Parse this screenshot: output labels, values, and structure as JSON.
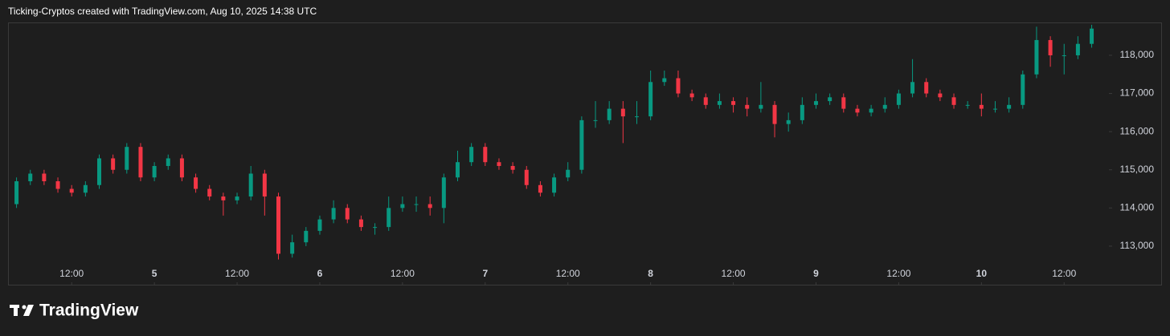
{
  "header": "Ticking-Cryptos created with TradingView.com, Aug 10, 2025 14:38 UTC",
  "brand": "TradingView",
  "chart_data": {
    "type": "candlestick",
    "up_color": "#089981",
    "down_color": "#f23645",
    "x": [
      4,
      6,
      8,
      10,
      12,
      14,
      16,
      18,
      20,
      22,
      24,
      26,
      28,
      30,
      32,
      34,
      36,
      38,
      40,
      42,
      44,
      46,
      48,
      50,
      52,
      54,
      56,
      58,
      60,
      62,
      64,
      66,
      68,
      70,
      72,
      74,
      76,
      78,
      80,
      82,
      84,
      86,
      88,
      90,
      92,
      94,
      96,
      98,
      100,
      102,
      104,
      106,
      108,
      110,
      112,
      114,
      116,
      118,
      120,
      122,
      124,
      126,
      128,
      130,
      132,
      134,
      136,
      138,
      140,
      142,
      144,
      146,
      148,
      150,
      152,
      154,
      156,
      158,
      160
    ],
    "open": [
      114100,
      114700,
      114900,
      114700,
      114500,
      114400,
      114600,
      115300,
      115000,
      115600,
      114800,
      115100,
      115300,
      114800,
      114500,
      114300,
      114200,
      114300,
      114900,
      114300,
      112800,
      113100,
      113400,
      113700,
      114000,
      113700,
      113500,
      113500,
      114000,
      114100,
      114100,
      114000,
      114800,
      115200,
      115600,
      115200,
      115100,
      115000,
      114600,
      114400,
      114800,
      115000,
      116300,
      116300,
      116600,
      116400,
      116400,
      117300,
      117400,
      117000,
      116900,
      116700,
      116800,
      116700,
      116600,
      116700,
      116200,
      116300,
      116700,
      116800,
      116900,
      116600,
      116500,
      116600,
      116700,
      117000,
      117300,
      117000,
      116900,
      116700,
      116700,
      116600,
      116600,
      116700,
      117500,
      118400,
      118000,
      118000,
      118300
    ],
    "high": [
      114800,
      115000,
      115000,
      114800,
      114600,
      114700,
      115400,
      115400,
      115700,
      115700,
      115200,
      115400,
      115400,
      114900,
      114600,
      114400,
      114400,
      115100,
      115000,
      114400,
      113300,
      113500,
      113800,
      114200,
      114100,
      113800,
      113600,
      114300,
      114300,
      114300,
      114300,
      114900,
      115500,
      115700,
      115700,
      115300,
      115200,
      115100,
      114700,
      114900,
      115200,
      116400,
      116800,
      116800,
      116800,
      116800,
      117600,
      117600,
      117600,
      117100,
      117000,
      117000,
      116900,
      116900,
      117300,
      116800,
      116500,
      116900,
      117000,
      117000,
      117000,
      116700,
      116700,
      116900,
      117100,
      117900,
      117400,
      117100,
      117000,
      116800,
      117000,
      116800,
      116900,
      117600,
      118750,
      118500,
      118300,
      118500,
      118800
    ],
    "low": [
      114000,
      114600,
      114600,
      114400,
      114300,
      114300,
      114500,
      114900,
      114900,
      114700,
      114700,
      115000,
      114700,
      114400,
      114200,
      113800,
      114100,
      114200,
      113800,
      112650,
      112700,
      113000,
      113300,
      113600,
      113600,
      113400,
      113300,
      113400,
      113900,
      113900,
      113800,
      113600,
      114700,
      115100,
      115100,
      115000,
      114900,
      114500,
      114300,
      114300,
      114700,
      114900,
      116100,
      116200,
      115700,
      116200,
      116300,
      117200,
      116900,
      116800,
      116600,
      116600,
      116500,
      116400,
      116500,
      115850,
      116000,
      116200,
      116600,
      116700,
      116500,
      116400,
      116400,
      116500,
      116600,
      116900,
      116900,
      116800,
      116600,
      116600,
      116400,
      116500,
      116500,
      116600,
      117400,
      117700,
      117500,
      117900,
      118200
    ],
    "close": [
      114700,
      114900,
      114700,
      114500,
      114400,
      114600,
      115300,
      115000,
      115600,
      114800,
      115100,
      115300,
      114800,
      114500,
      114300,
      114200,
      114300,
      114900,
      114300,
      112800,
      113100,
      113400,
      113700,
      114000,
      113700,
      113500,
      113500,
      114000,
      114100,
      114100,
      114000,
      114800,
      115200,
      115600,
      115200,
      115100,
      115000,
      114600,
      114400,
      114800,
      115000,
      116300,
      116300,
      116600,
      116400,
      116400,
      117300,
      117400,
      117000,
      116900,
      116700,
      116800,
      116700,
      116600,
      116700,
      116200,
      116300,
      116700,
      116800,
      116900,
      116600,
      116500,
      116600,
      116700,
      117000,
      117300,
      117000,
      116900,
      116700,
      116700,
      116600,
      116600,
      116700,
      117500,
      118400,
      118000,
      118000,
      118300,
      118700
    ],
    "xlim": [
      3,
      162.5
    ],
    "xticks": [
      {
        "value": 12,
        "label": "12:00"
      },
      {
        "value": 24,
        "label": "5"
      },
      {
        "value": 36,
        "label": "12:00"
      },
      {
        "value": 48,
        "label": "6"
      },
      {
        "value": 60,
        "label": "12:00"
      },
      {
        "value": 72,
        "label": "7"
      },
      {
        "value": 84,
        "label": "12:00"
      },
      {
        "value": 96,
        "label": "8"
      },
      {
        "value": 108,
        "label": "12:00"
      },
      {
        "value": 120,
        "label": "9"
      },
      {
        "value": 132,
        "label": "12:00"
      },
      {
        "value": 144,
        "label": "10"
      },
      {
        "value": 156,
        "label": "12:00"
      }
    ],
    "ylim": [
      112620,
      118840
    ],
    "yticks": [
      {
        "value": 113000,
        "label": "113,000"
      },
      {
        "value": 114000,
        "label": "114,000"
      },
      {
        "value": 115000,
        "label": "115,000"
      },
      {
        "value": 116000,
        "label": "116,000"
      },
      {
        "value": 117000,
        "label": "117,000"
      },
      {
        "value": 118000,
        "label": "118,000"
      }
    ]
  }
}
